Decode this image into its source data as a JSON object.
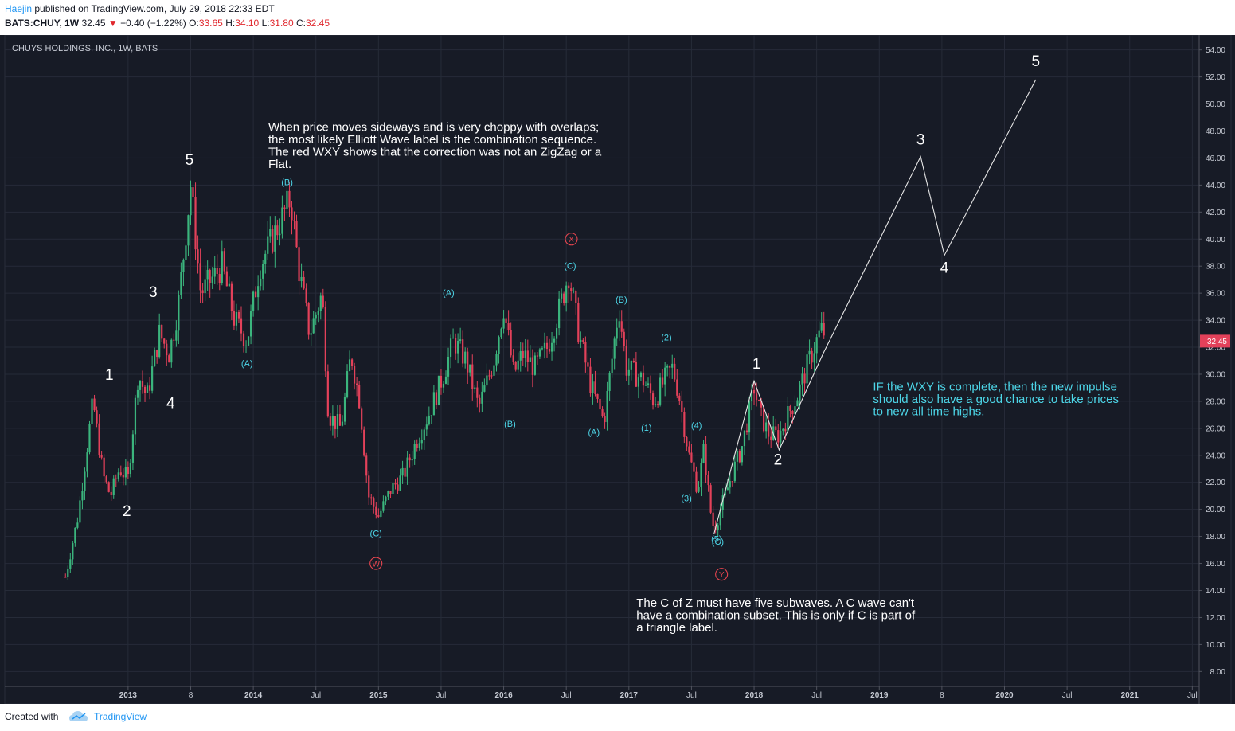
{
  "header": {
    "author": "Haejin",
    "published": "published on TradingView.com, July 29, 2018 22:33 EDT",
    "symbol": "BATS:CHUY, 1W",
    "price": "32.45",
    "change_arrow": "▼",
    "change": "−0.40 (−1.22%)",
    "o_label": "O:",
    "o_val": "33.65",
    "h_label": "H:",
    "h_val": "34.10",
    "l_label": "L:",
    "l_val": "31.80",
    "c_label": "C:",
    "c_val": "32.45"
  },
  "footer": {
    "created_with": "Created with",
    "brand": "TradingView"
  },
  "colors": {
    "background": "#171b26",
    "grid": "#262b38",
    "up": "#3bb57d",
    "down": "#e3415a",
    "label_cyan": "#4dd6e8",
    "label_red": "#e8454f",
    "text_white": "#ffffff",
    "axis_text": "#c7cbd4"
  },
  "chart_data": {
    "type": "candlestick",
    "title": "CHUYS HOLDINGS, INC., 1W, BATS",
    "ylim": [
      6.9,
      55.1
    ],
    "y_ticks": [
      "54.00",
      "52.00",
      "50.00",
      "48.00",
      "46.00",
      "44.00",
      "42.00",
      "40.00",
      "38.00",
      "36.00",
      "34.00",
      "32.00",
      "30.00",
      "28.00",
      "26.00",
      "24.00",
      "22.00",
      "20.00",
      "18.00",
      "16.00",
      "14.00",
      "12.00",
      "10.00",
      "8.00"
    ],
    "x_ticks": [
      {
        "t": 2013.0,
        "label": "2013"
      },
      {
        "t": 2013.5,
        "label": "8"
      },
      {
        "t": 2014.0,
        "label": "2014"
      },
      {
        "t": 2014.5,
        "label": "Jul"
      },
      {
        "t": 2015.0,
        "label": "2015"
      },
      {
        "t": 2015.5,
        "label": "Jul"
      },
      {
        "t": 2016.0,
        "label": "2016"
      },
      {
        "t": 2016.5,
        "label": "Jul"
      },
      {
        "t": 2017.0,
        "label": "2017"
      },
      {
        "t": 2017.5,
        "label": "Jul"
      },
      {
        "t": 2018.0,
        "label": "2018"
      },
      {
        "t": 2018.5,
        "label": "Jul"
      },
      {
        "t": 2019.0,
        "label": "2019"
      },
      {
        "t": 2019.5,
        "label": "8"
      },
      {
        "t": 2020.0,
        "label": "2020"
      },
      {
        "t": 2020.5,
        "label": "Jul"
      },
      {
        "t": 2021.0,
        "label": "2021"
      },
      {
        "t": 2021.5,
        "label": "Jul"
      }
    ],
    "last_price": "32.45",
    "price_path": [
      [
        2012.5,
        15.0
      ],
      [
        2012.6,
        19.5
      ],
      [
        2012.72,
        28.0
      ],
      [
        2012.8,
        22.5
      ],
      [
        2012.86,
        21.0
      ],
      [
        2012.93,
        23.0
      ],
      [
        2013.0,
        22.3
      ],
      [
        2013.08,
        30.0
      ],
      [
        2013.15,
        28.3
      ],
      [
        2013.25,
        33.0
      ],
      [
        2013.33,
        31.5
      ],
      [
        2013.4,
        35.0
      ],
      [
        2013.5,
        44.0
      ],
      [
        2013.58,
        36.0
      ],
      [
        2013.75,
        38.0
      ],
      [
        2013.85,
        34.0
      ],
      [
        2013.95,
        32.5
      ],
      [
        2014.05,
        38.0
      ],
      [
        2014.15,
        40.0
      ],
      [
        2014.25,
        42.0
      ],
      [
        2014.3,
        43.0
      ],
      [
        2014.36,
        38.0
      ],
      [
        2014.45,
        33.0
      ],
      [
        2014.55,
        36.0
      ],
      [
        2014.6,
        27.0
      ],
      [
        2014.7,
        26.0
      ],
      [
        2014.78,
        31.5
      ],
      [
        2014.85,
        28.0
      ],
      [
        2014.92,
        21.0
      ],
      [
        2015.0,
        19.5
      ],
      [
        2015.1,
        21.5
      ],
      [
        2015.2,
        22.5
      ],
      [
        2015.3,
        25.0
      ],
      [
        2015.4,
        27.0
      ],
      [
        2015.52,
        30.0
      ],
      [
        2015.6,
        32.5
      ],
      [
        2015.7,
        31.0
      ],
      [
        2015.8,
        27.5
      ],
      [
        2015.92,
        31.0
      ],
      [
        2016.0,
        35.0
      ],
      [
        2016.08,
        30.0
      ],
      [
        2016.15,
        31.5
      ],
      [
        2016.25,
        30.5
      ],
      [
        2016.35,
        32.0
      ],
      [
        2016.45,
        35.0
      ],
      [
        2016.52,
        37.5
      ],
      [
        2016.6,
        33.0
      ],
      [
        2016.7,
        29.0
      ],
      [
        2016.8,
        26.5
      ],
      [
        2016.92,
        35.0
      ],
      [
        2016.98,
        30.5
      ],
      [
        2017.05,
        30.0
      ],
      [
        2017.12,
        29.5
      ],
      [
        2017.2,
        28.0
      ],
      [
        2017.28,
        29.5
      ],
      [
        2017.35,
        30.5
      ],
      [
        2017.4,
        28.5
      ],
      [
        2017.48,
        24.0
      ],
      [
        2017.55,
        21.5
      ],
      [
        2017.6,
        24.5
      ],
      [
        2017.65,
        20.0
      ],
      [
        2017.68,
        18.5
      ],
      [
        2017.75,
        20.5
      ],
      [
        2017.82,
        22.5
      ],
      [
        2017.9,
        24.5
      ],
      [
        2018.0,
        29.0
      ],
      [
        2018.05,
        27.0
      ],
      [
        2018.12,
        25.5
      ],
      [
        2018.2,
        25.5
      ],
      [
        2018.27,
        27.0
      ],
      [
        2018.35,
        28.5
      ],
      [
        2018.42,
        30.5
      ],
      [
        2018.5,
        32.5
      ],
      [
        2018.55,
        33.5
      ],
      [
        2018.57,
        32.45
      ]
    ],
    "projection": [
      {
        "t": 2017.68,
        "y": 18.2
      },
      {
        "t": 2018.0,
        "y": 29.5
      },
      {
        "t": 2018.2,
        "y": 24.4
      },
      {
        "t": 2018.55,
        "y": 31.5
      },
      {
        "t": 2019.33,
        "y": 46.1
      },
      {
        "t": 2019.52,
        "y": 38.8
      },
      {
        "t": 2020.25,
        "y": 51.8
      }
    ],
    "wave_labels": [
      {
        "text": "1",
        "t": 2012.85,
        "y": 29.6,
        "style": "white"
      },
      {
        "text": "2",
        "t": 2012.99,
        "y": 19.5,
        "style": "white"
      },
      {
        "text": "3",
        "t": 2013.2,
        "y": 35.7,
        "style": "white"
      },
      {
        "text": "4",
        "t": 2013.34,
        "y": 27.5,
        "style": "white"
      },
      {
        "text": "5",
        "t": 2013.49,
        "y": 45.5,
        "style": "white"
      },
      {
        "text": "(A)",
        "t": 2013.95,
        "y": 30.6,
        "style": "cyan"
      },
      {
        "text": "(B)",
        "t": 2014.27,
        "y": 44.0,
        "style": "cyan"
      },
      {
        "text": "(C)",
        "t": 2014.98,
        "y": 18.0,
        "style": "cyan"
      },
      {
        "text": "(A)",
        "t": 2015.56,
        "y": 35.8,
        "style": "cyan"
      },
      {
        "text": "(B)",
        "t": 2016.05,
        "y": 26.1,
        "style": "cyan"
      },
      {
        "text": "(C)",
        "t": 2016.53,
        "y": 37.8,
        "style": "cyan"
      },
      {
        "text": "(A)",
        "t": 2016.72,
        "y": 25.5,
        "style": "cyan"
      },
      {
        "text": "(B)",
        "t": 2016.94,
        "y": 35.3,
        "style": "cyan"
      },
      {
        "text": "(1)",
        "t": 2017.14,
        "y": 25.8,
        "style": "cyan"
      },
      {
        "text": "(2)",
        "t": 2017.3,
        "y": 32.5,
        "style": "cyan"
      },
      {
        "text": "(3)",
        "t": 2017.46,
        "y": 20.6,
        "style": "cyan"
      },
      {
        "text": "(4)",
        "t": 2017.54,
        "y": 26.0,
        "style": "cyan"
      },
      {
        "text": "(5)",
        "t": 2017.7,
        "y": 17.6,
        "style": "cyan"
      },
      {
        "text": "(C)",
        "t": 2017.71,
        "y": 17.4,
        "style": "cyan"
      },
      {
        "text": "1",
        "t": 2018.02,
        "y": 30.4,
        "style": "white"
      },
      {
        "text": "2",
        "t": 2018.19,
        "y": 23.3,
        "style": "white"
      },
      {
        "text": "3",
        "t": 2019.33,
        "y": 47.0,
        "style": "white"
      },
      {
        "text": "4",
        "t": 2019.52,
        "y": 37.5,
        "style": "white"
      },
      {
        "text": "5",
        "t": 2020.25,
        "y": 52.8,
        "style": "white"
      }
    ],
    "circle_labels": [
      {
        "text": "X",
        "t": 2016.54,
        "y": 40.0
      },
      {
        "text": "W",
        "t": 2014.98,
        "y": 16.0
      },
      {
        "text": "Y",
        "t": 2017.74,
        "y": 15.2
      }
    ],
    "annotations": [
      {
        "id": "note1",
        "color": "white",
        "t": 2014.12,
        "y": 48.0,
        "lines": [
          "When price moves sideways and is very choppy with overlaps;",
          "the most likely Elliott Wave label is the combination sequence.",
          "The red WXY shows that the correction was not an ZigZag or a",
          "Flat."
        ]
      },
      {
        "id": "note2",
        "color": "cyan",
        "t": 2018.95,
        "y": 28.8,
        "lines": [
          "IF the WXY is complete, then the new impulse",
          "should also have a good chance to take prices",
          "to new all time highs."
        ]
      },
      {
        "id": "note3",
        "color": "white",
        "t": 2017.06,
        "y": 12.8,
        "lines": [
          "The C of Z must have five subwaves. A C wave can't",
          "have a combination subset. This is only if C is part of",
          "a triangle label."
        ]
      }
    ]
  }
}
